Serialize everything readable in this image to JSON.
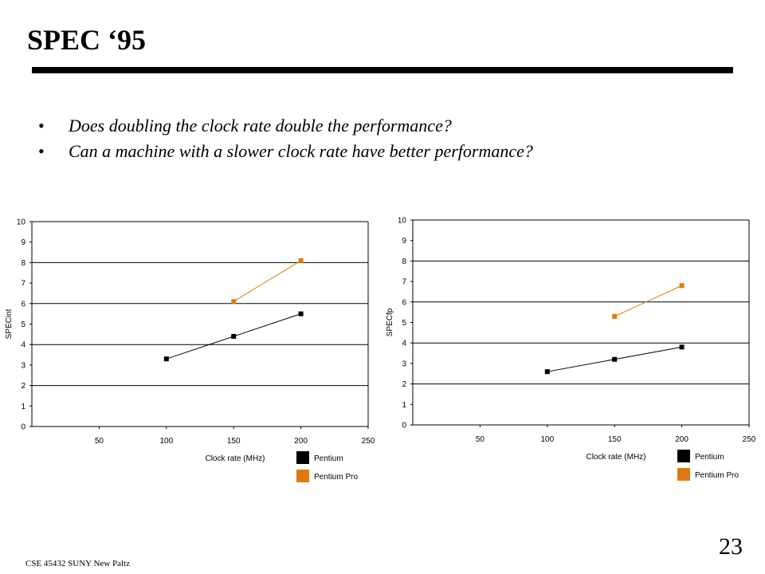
{
  "slide": {
    "title": "SPEC ‘95",
    "bullets": [
      "Does doubling the clock rate double the performance?",
      "Can a machine with a slower clock rate have better performance?"
    ],
    "bullet_glyph": "•",
    "footer": "CSE 45432 SUNY New Paltz",
    "page_number": "23"
  },
  "chart_data": [
    {
      "type": "line",
      "title": "",
      "xlabel": "Clock rate (MHz)",
      "ylabel": "SPECint",
      "xlim": [
        0,
        250
      ],
      "ylim": [
        0,
        10
      ],
      "xticks": [
        50,
        100,
        150,
        200,
        250
      ],
      "yticks": [
        0,
        1,
        2,
        3,
        4,
        5,
        6,
        7,
        8,
        9,
        10
      ],
      "gridlines_y": [
        2,
        4,
        6,
        8,
        10
      ],
      "legend_placement": "bottom-right",
      "series": [
        {
          "name": "Pentium",
          "color": "#000000",
          "x": [
            100,
            150,
            200
          ],
          "y": [
            3.3,
            4.4,
            5.5
          ]
        },
        {
          "name": "Pentium Pro",
          "color": "#e07a10",
          "x": [
            150,
            200
          ],
          "y": [
            6.1,
            8.1
          ]
        }
      ]
    },
    {
      "type": "line",
      "title": "",
      "xlabel": "Clock rate (MHz)",
      "ylabel": "SPECfp",
      "xlim": [
        0,
        250
      ],
      "ylim": [
        0,
        10
      ],
      "xticks": [
        50,
        100,
        150,
        200,
        250
      ],
      "yticks": [
        0,
        1,
        2,
        3,
        4,
        5,
        6,
        7,
        8,
        9,
        10
      ],
      "gridlines_y": [
        2,
        4,
        6,
        8,
        10
      ],
      "legend_placement": "bottom-right",
      "series": [
        {
          "name": "Pentium",
          "color": "#000000",
          "x": [
            100,
            150,
            200
          ],
          "y": [
            2.6,
            3.2,
            3.8
          ]
        },
        {
          "name": "Pentium Pro",
          "color": "#e07a10",
          "x": [
            150,
            200
          ],
          "y": [
            5.3,
            6.8
          ]
        }
      ]
    }
  ]
}
